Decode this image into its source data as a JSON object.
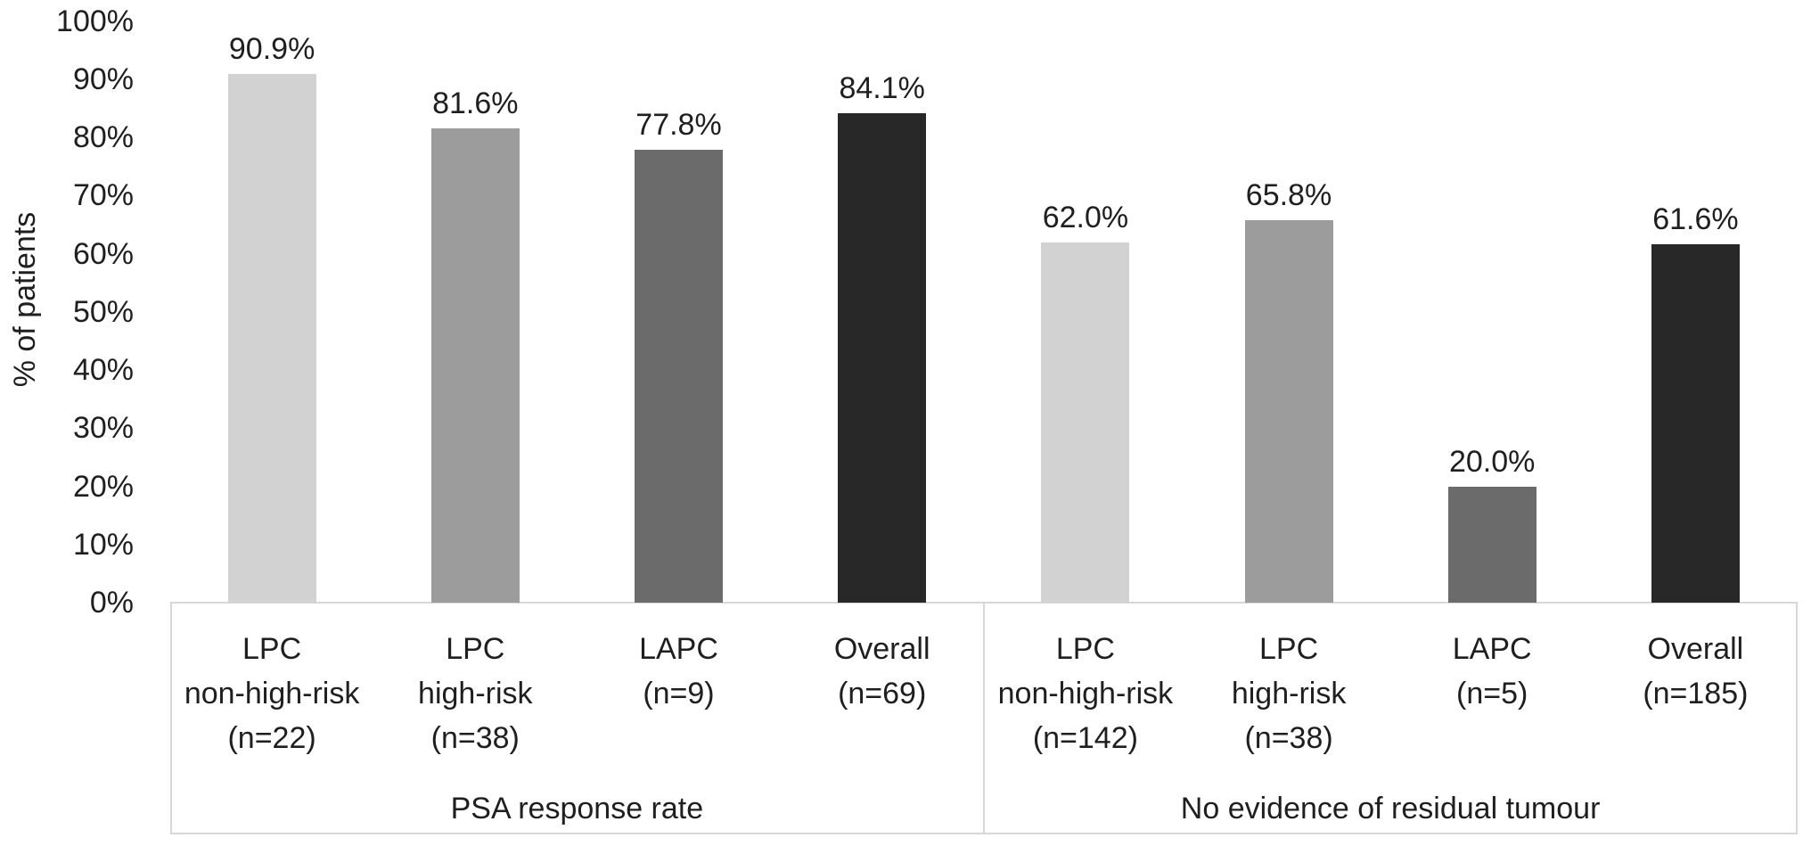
{
  "chart_data": {
    "type": "bar",
    "title": "",
    "ylabel": "% of patients",
    "ylim": [
      0,
      100
    ],
    "y_tick_step": 10,
    "y_tick_labels": [
      "0%",
      "10%",
      "20%",
      "30%",
      "40%",
      "50%",
      "60%",
      "70%",
      "80%",
      "90%",
      "100%"
    ],
    "grid": false,
    "legend": false,
    "value_label_format": "percent_one_decimal",
    "colors": {
      "lpc_non_high_risk": "#d2d2d2",
      "lpc_high_risk": "#9c9c9c",
      "lapc": "#6b6b6b",
      "overall": "#282828",
      "axis_line": "#d6d6d6",
      "text": "#1f1f1f",
      "background": "#ffffff"
    },
    "groups": [
      {
        "label": "PSA response rate",
        "bars": [
          {
            "category_lines": [
              "LPC",
              "non-high-risk",
              "(n=22)"
            ],
            "value": 90.9,
            "value_label": "90.9%",
            "color": "#d2d2d2"
          },
          {
            "category_lines": [
              "LPC",
              "high-risk",
              "(n=38)"
            ],
            "value": 81.6,
            "value_label": "81.6%",
            "color": "#9c9c9c"
          },
          {
            "category_lines": [
              "LAPC",
              "(n=9)"
            ],
            "value": 77.8,
            "value_label": "77.8%",
            "color": "#6b6b6b"
          },
          {
            "category_lines": [
              "Overall",
              "(n=69)"
            ],
            "value": 84.1,
            "value_label": "84.1%",
            "color": "#282828"
          }
        ]
      },
      {
        "label": "No evidence of residual tumour",
        "bars": [
          {
            "category_lines": [
              "LPC",
              "non-high-risk",
              "(n=142)"
            ],
            "value": 62.0,
            "value_label": "62.0%",
            "color": "#d2d2d2"
          },
          {
            "category_lines": [
              "LPC",
              "high-risk",
              "(n=38)"
            ],
            "value": 65.8,
            "value_label": "65.8%",
            "color": "#9c9c9c"
          },
          {
            "category_lines": [
              "LAPC",
              "(n=5)"
            ],
            "value": 20.0,
            "value_label": "20.0%",
            "color": "#6b6b6b"
          },
          {
            "category_lines": [
              "Overall",
              "(n=185)"
            ],
            "value": 61.6,
            "value_label": "61.6%",
            "color": "#282828"
          }
        ]
      }
    ]
  }
}
